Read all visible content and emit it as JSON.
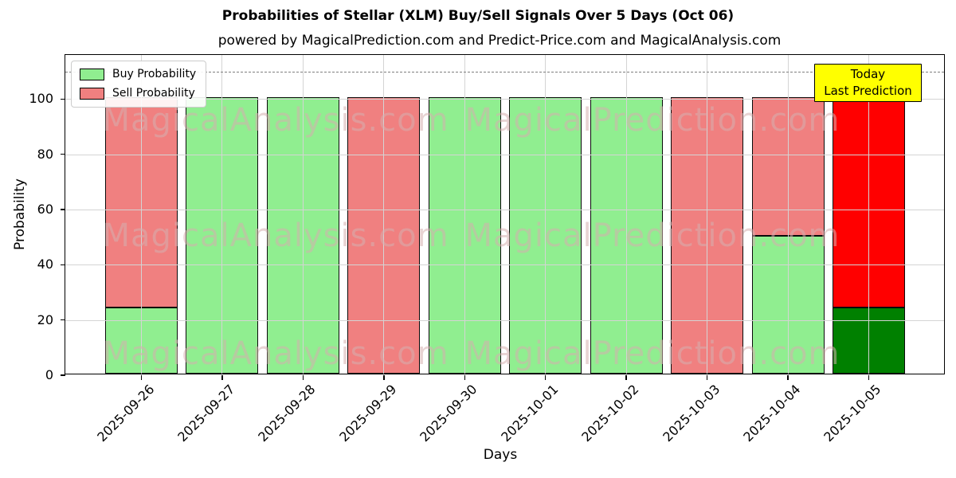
{
  "title": "Probabilities of Stellar (XLM) Buy/Sell Signals Over 5 Days (Oct 06)",
  "subtitle": "powered by MagicalPrediction.com and Predict-Price.com and MagicalAnalysis.com",
  "annotation": {
    "line1": "Today",
    "line2": "Last Prediction",
    "bg": "#ffff00"
  },
  "watermarks": {
    "texts": [
      "MagicalAnalysis.com",
      "MagicalPrediction.com"
    ],
    "color": "rgba(214,175,175,0.55)"
  },
  "chart_data": {
    "type": "bar",
    "stacked": true,
    "title": "Probabilities of Stellar (XLM) Buy/Sell Signals Over 5 Days (Oct 06)",
    "xlabel": "Days",
    "ylabel": "Probability",
    "categories": [
      "2025-09-26",
      "2025-09-27",
      "2025-09-28",
      "2025-09-29",
      "2025-09-30",
      "2025-10-01",
      "2025-10-02",
      "2025-10-03",
      "2025-10-04",
      "2025-10-05"
    ],
    "series": [
      {
        "name": "Buy Probability",
        "color": "#90ee90",
        "values": [
          24,
          100,
          100,
          0,
          100,
          100,
          100,
          0,
          50,
          24
        ]
      },
      {
        "name": "Sell Probability",
        "color": "#f08080",
        "values": [
          76,
          0,
          0,
          100,
          0,
          0,
          0,
          100,
          50,
          76
        ]
      }
    ],
    "today_index": 9,
    "today_colors": {
      "buy": "#008000",
      "sell": "#ff0000"
    },
    "bar_edge_color": "#0a0a0a",
    "ylim": [
      0,
      116
    ],
    "yticks": [
      0,
      20,
      40,
      60,
      80,
      100
    ],
    "dashed_line_y": 110,
    "grid": true,
    "grid_color": "#d4d4d4",
    "legend_position": "upper left"
  }
}
